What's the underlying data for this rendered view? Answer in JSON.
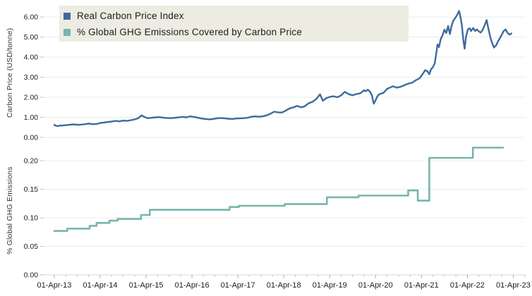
{
  "figure": {
    "legend": {
      "background": "#edece3",
      "position": "top-left",
      "items": [
        {
          "label": "Real Carbon Price Index",
          "color": "#3d6b9c"
        },
        {
          "label": "% Global GHG Emissions Covered by Carbon Price",
          "color": "#76b6ad"
        }
      ]
    },
    "colors": {
      "gridline": "#ececec",
      "axis_line": "#d9d9d9",
      "major_tick": "#a8a8a8",
      "minor_tick": "#c2c2c2",
      "tick_text": "#222222"
    }
  },
  "chart_data": [
    {
      "type": "line",
      "title": "Real Carbon Price Index",
      "ylabel": "Carbon Price (USD/tonne)",
      "color": "#3d6b9c",
      "grid": true,
      "step": false,
      "x_unit": "decimal_year",
      "xlim": [
        2013.02,
        2023.52
      ],
      "ylim": [
        0,
        6.6
      ],
      "yticks": [
        0,
        1,
        2,
        3,
        4,
        5,
        6
      ],
      "ytick_labels": [
        "0.00",
        "1.00",
        "2.00",
        "3.00",
        "4.00",
        "5.00",
        "6.00"
      ],
      "points": [
        [
          2013.25,
          0.62
        ],
        [
          2013.29,
          0.58
        ],
        [
          2013.33,
          0.56
        ],
        [
          2013.38,
          0.6
        ],
        [
          2013.42,
          0.59
        ],
        [
          2013.5,
          0.61
        ],
        [
          2013.58,
          0.63
        ],
        [
          2013.67,
          0.65
        ],
        [
          2013.75,
          0.63
        ],
        [
          2013.83,
          0.64
        ],
        [
          2013.92,
          0.66
        ],
        [
          2014.0,
          0.69
        ],
        [
          2014.08,
          0.66
        ],
        [
          2014.17,
          0.67
        ],
        [
          2014.25,
          0.72
        ],
        [
          2014.33,
          0.74
        ],
        [
          2014.42,
          0.77
        ],
        [
          2014.5,
          0.79
        ],
        [
          2014.58,
          0.82
        ],
        [
          2014.67,
          0.8
        ],
        [
          2014.75,
          0.84
        ],
        [
          2014.83,
          0.82
        ],
        [
          2014.92,
          0.86
        ],
        [
          2015.0,
          0.9
        ],
        [
          2015.08,
          0.96
        ],
        [
          2015.15,
          1.1
        ],
        [
          2015.21,
          1.02
        ],
        [
          2015.29,
          0.96
        ],
        [
          2015.38,
          0.98
        ],
        [
          2015.46,
          1.0
        ],
        [
          2015.54,
          1.01
        ],
        [
          2015.63,
          0.98
        ],
        [
          2015.71,
          0.97
        ],
        [
          2015.79,
          0.96
        ],
        [
          2015.88,
          0.98
        ],
        [
          2015.96,
          1.0
        ],
        [
          2016.04,
          1.02
        ],
        [
          2016.13,
          1.0
        ],
        [
          2016.21,
          1.05
        ],
        [
          2016.29,
          1.02
        ],
        [
          2016.38,
          0.98
        ],
        [
          2016.46,
          0.94
        ],
        [
          2016.54,
          0.92
        ],
        [
          2016.63,
          0.9
        ],
        [
          2016.71,
          0.92
        ],
        [
          2016.79,
          0.95
        ],
        [
          2016.88,
          0.97
        ],
        [
          2016.96,
          0.95
        ],
        [
          2017.04,
          0.93
        ],
        [
          2017.13,
          0.92
        ],
        [
          2017.21,
          0.94
        ],
        [
          2017.29,
          0.95
        ],
        [
          2017.38,
          0.96
        ],
        [
          2017.46,
          0.98
        ],
        [
          2017.54,
          1.03
        ],
        [
          2017.63,
          1.05
        ],
        [
          2017.71,
          1.03
        ],
        [
          2017.79,
          1.05
        ],
        [
          2017.88,
          1.1
        ],
        [
          2017.96,
          1.18
        ],
        [
          2018.04,
          1.28
        ],
        [
          2018.13,
          1.25
        ],
        [
          2018.21,
          1.24
        ],
        [
          2018.29,
          1.33
        ],
        [
          2018.38,
          1.45
        ],
        [
          2018.46,
          1.5
        ],
        [
          2018.54,
          1.57
        ],
        [
          2018.63,
          1.5
        ],
        [
          2018.71,
          1.55
        ],
        [
          2018.79,
          1.7
        ],
        [
          2018.88,
          1.78
        ],
        [
          2018.96,
          1.92
        ],
        [
          2019.04,
          2.15
        ],
        [
          2019.1,
          1.83
        ],
        [
          2019.17,
          1.95
        ],
        [
          2019.25,
          2.02
        ],
        [
          2019.33,
          2.05
        ],
        [
          2019.42,
          2.0
        ],
        [
          2019.5,
          2.1
        ],
        [
          2019.58,
          2.27
        ],
        [
          2019.67,
          2.15
        ],
        [
          2019.75,
          2.1
        ],
        [
          2019.83,
          2.16
        ],
        [
          2019.92,
          2.2
        ],
        [
          2020.0,
          2.35
        ],
        [
          2020.04,
          2.3
        ],
        [
          2020.08,
          2.38
        ],
        [
          2020.13,
          2.28
        ],
        [
          2020.17,
          2.1
        ],
        [
          2020.21,
          1.68
        ],
        [
          2020.25,
          1.85
        ],
        [
          2020.29,
          2.05
        ],
        [
          2020.33,
          2.15
        ],
        [
          2020.42,
          2.22
        ],
        [
          2020.5,
          2.42
        ],
        [
          2020.58,
          2.5
        ],
        [
          2020.63,
          2.55
        ],
        [
          2020.71,
          2.48
        ],
        [
          2020.79,
          2.52
        ],
        [
          2020.88,
          2.6
        ],
        [
          2020.96,
          2.68
        ],
        [
          2021.04,
          2.72
        ],
        [
          2021.13,
          2.85
        ],
        [
          2021.21,
          2.95
        ],
        [
          2021.29,
          3.2
        ],
        [
          2021.33,
          3.35
        ],
        [
          2021.38,
          3.3
        ],
        [
          2021.42,
          3.15
        ],
        [
          2021.46,
          3.4
        ],
        [
          2021.5,
          3.5
        ],
        [
          2021.54,
          3.7
        ],
        [
          2021.58,
          4.3
        ],
        [
          2021.6,
          4.63
        ],
        [
          2021.63,
          4.5
        ],
        [
          2021.67,
          4.9
        ],
        [
          2021.71,
          5.1
        ],
        [
          2021.75,
          5.37
        ],
        [
          2021.79,
          5.2
        ],
        [
          2021.83,
          5.55
        ],
        [
          2021.87,
          5.15
        ],
        [
          2021.9,
          5.5
        ],
        [
          2021.94,
          5.8
        ],
        [
          2022.0,
          6.0
        ],
        [
          2022.04,
          6.15
        ],
        [
          2022.07,
          6.3
        ],
        [
          2022.1,
          6.0
        ],
        [
          2022.13,
          5.6
        ],
        [
          2022.16,
          4.9
        ],
        [
          2022.19,
          4.42
        ],
        [
          2022.22,
          5.0
        ],
        [
          2022.26,
          5.37
        ],
        [
          2022.3,
          5.44
        ],
        [
          2022.33,
          5.3
        ],
        [
          2022.38,
          5.45
        ],
        [
          2022.42,
          5.3
        ],
        [
          2022.46,
          5.38
        ],
        [
          2022.5,
          5.28
        ],
        [
          2022.54,
          5.22
        ],
        [
          2022.58,
          5.35
        ],
        [
          2022.63,
          5.6
        ],
        [
          2022.67,
          5.85
        ],
        [
          2022.71,
          5.4
        ],
        [
          2022.75,
          5.0
        ],
        [
          2022.79,
          4.7
        ],
        [
          2022.83,
          4.48
        ],
        [
          2022.88,
          4.6
        ],
        [
          2022.92,
          4.8
        ],
        [
          2022.96,
          4.95
        ],
        [
          2023.0,
          5.12
        ],
        [
          2023.04,
          5.3
        ],
        [
          2023.08,
          5.38
        ],
        [
          2023.13,
          5.2
        ],
        [
          2023.17,
          5.12
        ],
        [
          2023.21,
          5.18
        ]
      ]
    },
    {
      "type": "line",
      "title": "% Global GHG Emissions Covered by Carbon Price",
      "ylabel": "% Global GHG Emissions",
      "color": "#76b6ad",
      "grid": true,
      "step": true,
      "x_unit": "decimal_year",
      "xlim": [
        2013.02,
        2023.52
      ],
      "ylim": [
        0,
        0.2285
      ],
      "yticks": [
        0,
        0.05,
        0.1,
        0.15,
        0.2
      ],
      "ytick_labels": [
        "0.00",
        "0.05",
        "0.10",
        "0.15",
        "0.20"
      ],
      "points": [
        [
          2013.25,
          0.077
        ],
        [
          2013.53,
          0.081
        ],
        [
          2014.02,
          0.086
        ],
        [
          2014.17,
          0.091
        ],
        [
          2014.45,
          0.095
        ],
        [
          2014.63,
          0.098
        ],
        [
          2015.14,
          0.105
        ],
        [
          2015.33,
          0.114
        ],
        [
          2017.07,
          0.119
        ],
        [
          2017.27,
          0.121
        ],
        [
          2018.27,
          0.124
        ],
        [
          2019.19,
          0.136
        ],
        [
          2019.88,
          0.139
        ],
        [
          2020.96,
          0.148
        ],
        [
          2021.17,
          0.13
        ],
        [
          2021.42,
          0.205
        ],
        [
          2022.37,
          0.223
        ],
        [
          2023.03,
          0.223
        ]
      ]
    }
  ],
  "x_axis": {
    "major_tick_years": [
      2013.25,
      2014.25,
      2015.25,
      2016.25,
      2017.25,
      2018.25,
      2019.25,
      2020.25,
      2021.25,
      2022.25,
      2023.25
    ],
    "minor_tick_step_years": 0.25,
    "tick_labels": [
      "01-Apr-13",
      "01-Apr-14",
      "01-Apr-15",
      "01-Apr-16",
      "01-Apr-17",
      "01-Apr-18",
      "01-Apr-19",
      "01-Apr-20",
      "01-Apr-21",
      "01-Apr-22",
      "01-Apr-23"
    ]
  }
}
